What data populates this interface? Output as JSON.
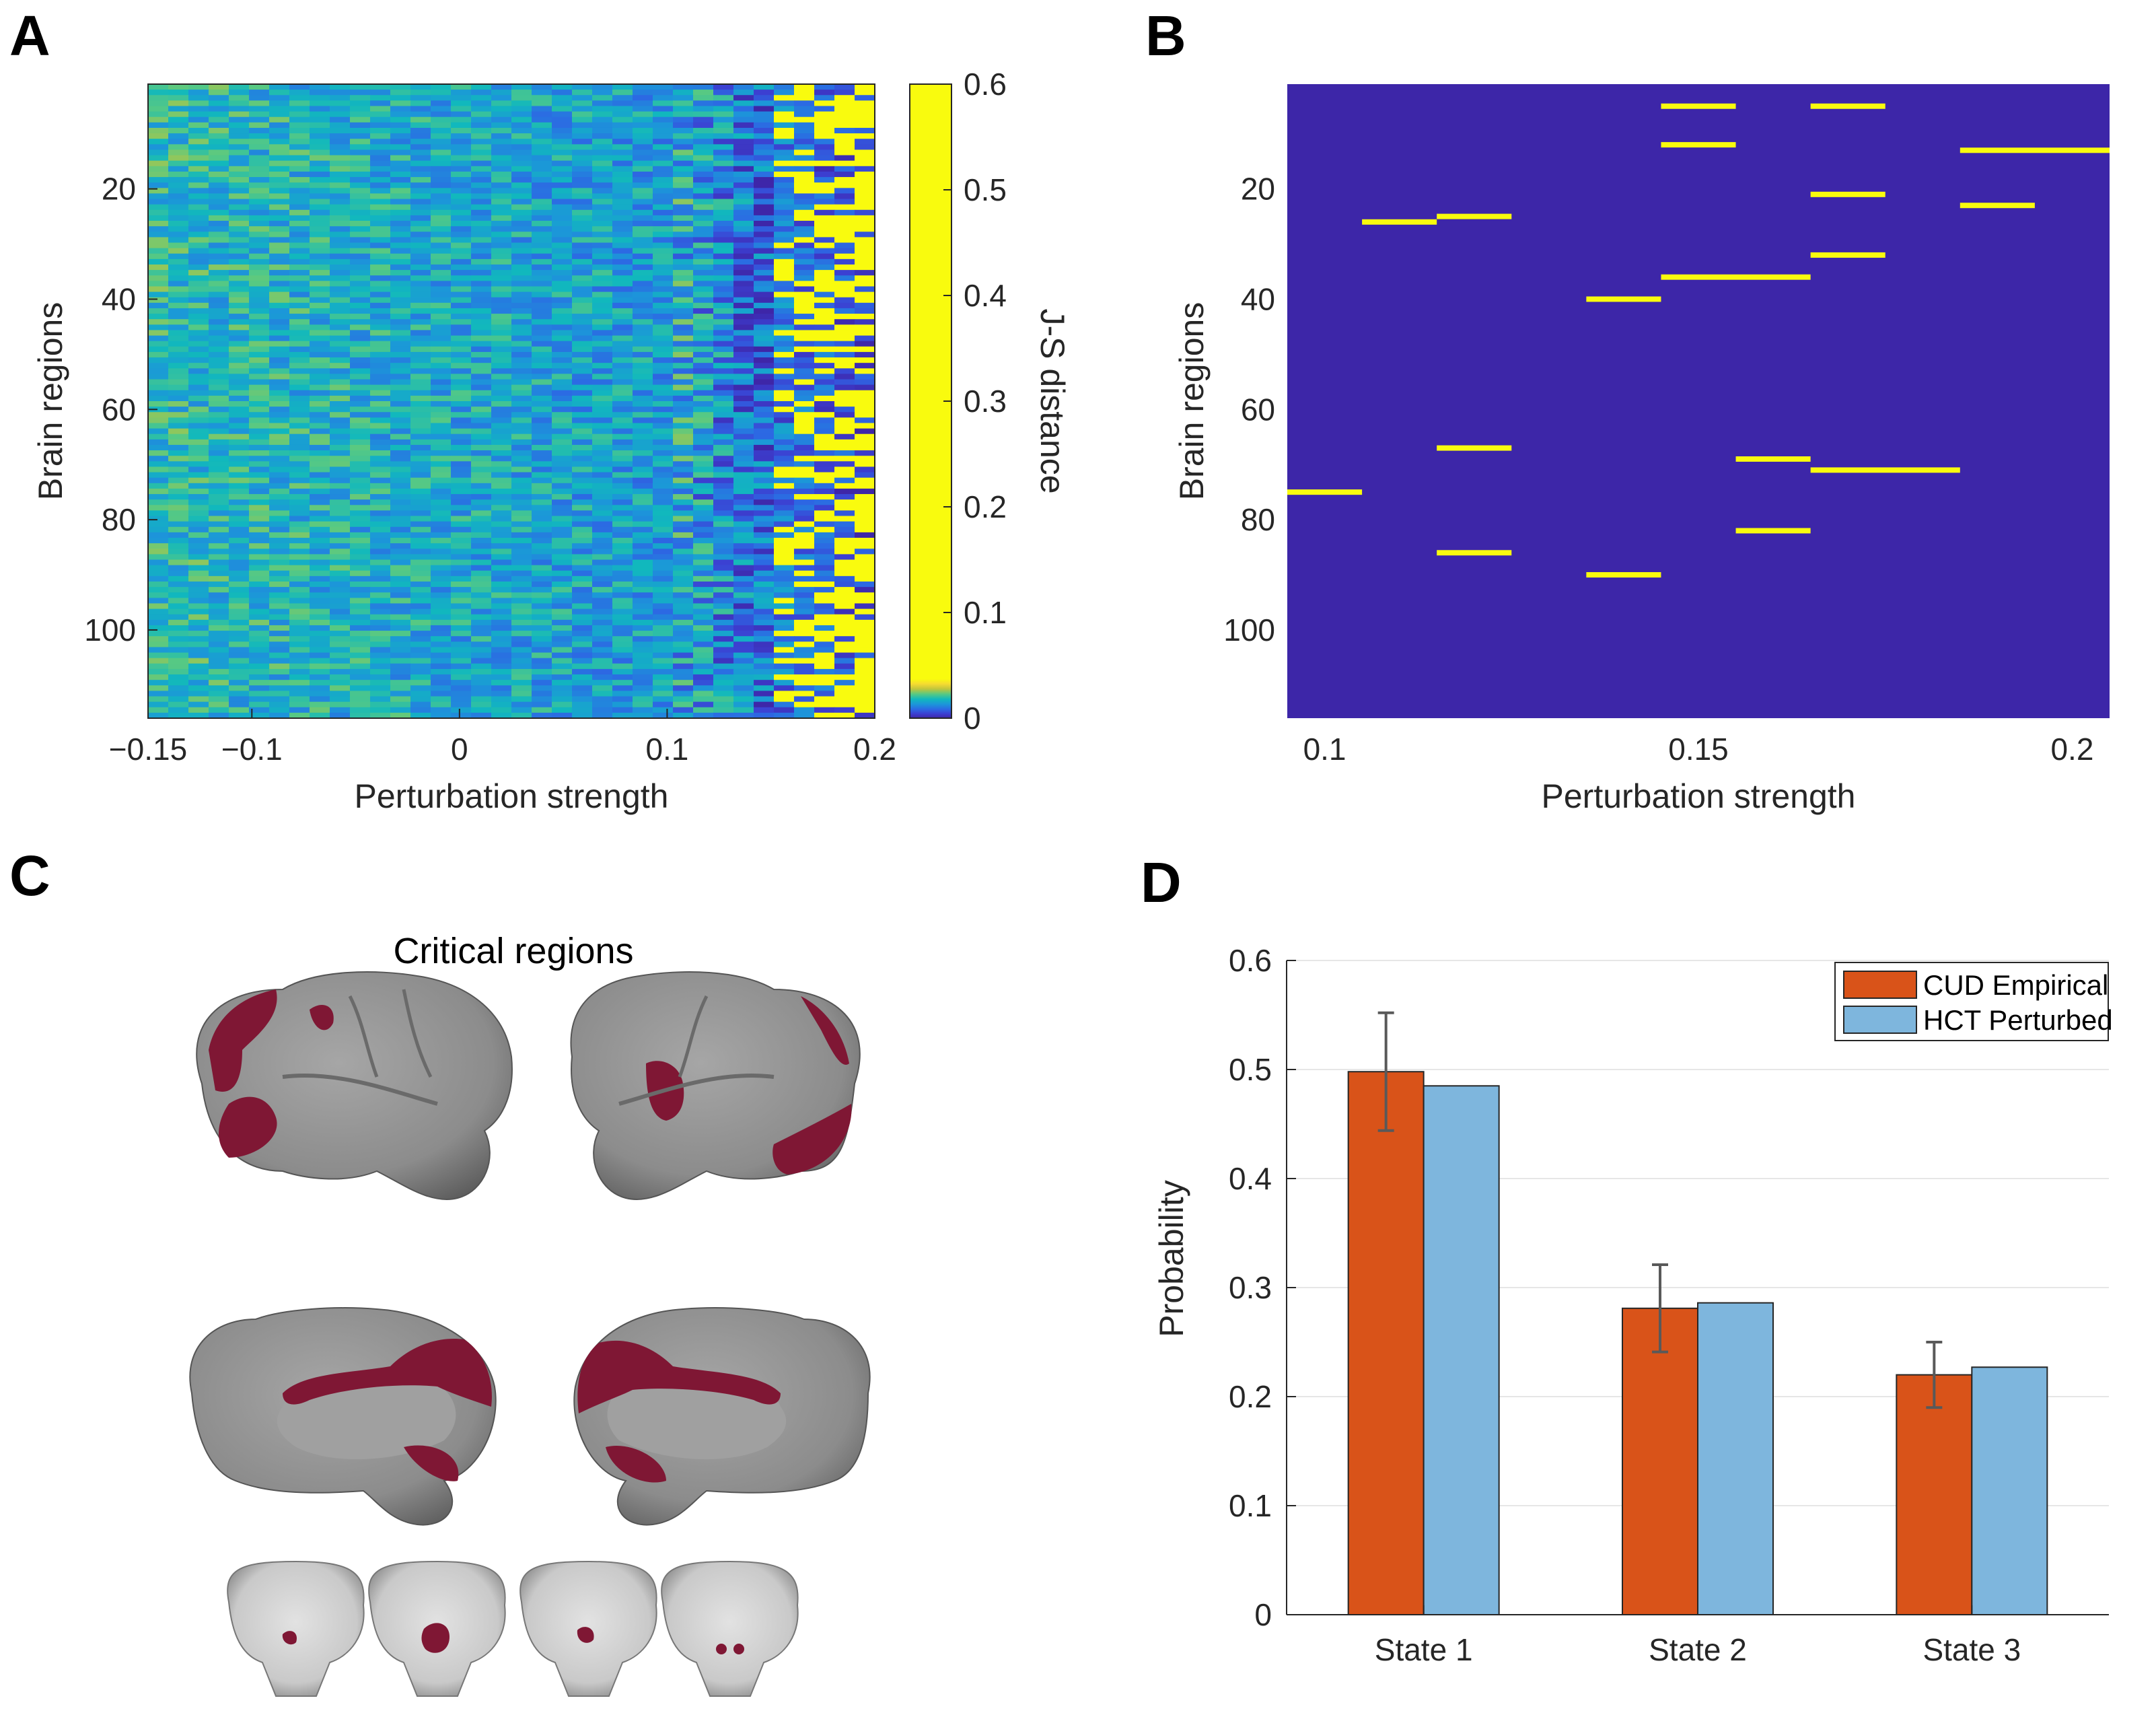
{
  "panels": {
    "A": {
      "label": "A",
      "chart_data": {
        "type": "heatmap",
        "xlabel": "Perturbation strength",
        "ylabel": "Brain regions",
        "xlim": [
          -0.15,
          0.2
        ],
        "ylim": [
          1,
          116
        ],
        "xticks": [
          "−0.15",
          "−0.1",
          "0",
          "0.1",
          "0.2"
        ],
        "xtick_values": [
          -0.15,
          -0.1,
          0,
          0.1,
          0.2
        ],
        "yticks": [
          "20",
          "40",
          "60",
          "80",
          "100"
        ],
        "ytick_values": [
          20,
          40,
          60,
          80,
          100
        ],
        "colorbar": {
          "label": "J-S distance",
          "range": [
            0,
            0.6
          ],
          "ticks": [
            "0",
            "0.1",
            "0.2",
            "0.3",
            "0.4",
            "0.5",
            "0.6"
          ],
          "tick_values": [
            0,
            0.1,
            0.2,
            0.3,
            0.4,
            0.5,
            0.6
          ]
        },
        "n_regions": 116,
        "n_strengths": 36,
        "description_of_trend": "Low J-S distance (~0.02-0.03) for strengths below 0.1; rising sharply near 0.15-0.2 reaching saturation (>=0.6) for many regions"
      }
    },
    "B": {
      "label": "B",
      "chart_data": {
        "type": "heatmap",
        "xlabel": "Perturbation strength",
        "ylabel": "Brain regions",
        "xlim": [
          0.095,
          0.205
        ],
        "ylim": [
          1,
          116
        ],
        "xticks": [
          "0.1",
          "0.15",
          "0.2"
        ],
        "xtick_values": [
          0.1,
          0.15,
          0.2
        ],
        "yticks": [
          "20",
          "40",
          "60",
          "80",
          "100"
        ],
        "ytick_values": [
          20,
          40,
          60,
          80,
          100
        ],
        "critical_segments": [
          {
            "region": 75,
            "x_from": 0.095,
            "x_to": 0.105
          },
          {
            "region": 26,
            "x_from": 0.105,
            "x_to": 0.115
          },
          {
            "region": 25,
            "x_from": 0.115,
            "x_to": 0.125
          },
          {
            "region": 67,
            "x_from": 0.115,
            "x_to": 0.125
          },
          {
            "region": 86,
            "x_from": 0.115,
            "x_to": 0.125
          },
          {
            "region": 40,
            "x_from": 0.135,
            "x_to": 0.145
          },
          {
            "region": 90,
            "x_from": 0.135,
            "x_to": 0.145
          },
          {
            "region": 5,
            "x_from": 0.145,
            "x_to": 0.155
          },
          {
            "region": 12,
            "x_from": 0.145,
            "x_to": 0.155
          },
          {
            "region": 36,
            "x_from": 0.145,
            "x_to": 0.165
          },
          {
            "region": 69,
            "x_from": 0.155,
            "x_to": 0.165
          },
          {
            "region": 82,
            "x_from": 0.155,
            "x_to": 0.165
          },
          {
            "region": 5,
            "x_from": 0.165,
            "x_to": 0.175
          },
          {
            "region": 21,
            "x_from": 0.165,
            "x_to": 0.175
          },
          {
            "region": 32,
            "x_from": 0.165,
            "x_to": 0.175
          },
          {
            "region": 71,
            "x_from": 0.165,
            "x_to": 0.185
          },
          {
            "region": 13,
            "x_from": 0.185,
            "x_to": 0.205
          },
          {
            "region": 23,
            "x_from": 0.185,
            "x_to": 0.195
          }
        ]
      }
    },
    "C": {
      "label": "C",
      "title": "Critical regions",
      "views": [
        "left-lateral",
        "right-lateral",
        "left-medial",
        "right-medial",
        "coronal-1",
        "coronal-2",
        "coronal-3",
        "coronal-4"
      ]
    },
    "D": {
      "label": "D",
      "chart_data": {
        "type": "bar",
        "categories": [
          "State 1",
          "State 2",
          "State 3"
        ],
        "series": [
          {
            "name": "CUD Empirical",
            "values": [
              0.498,
              0.281,
              0.22
            ],
            "error": [
              0.054,
              0.04,
              0.03
            ],
            "color": "#d95319"
          },
          {
            "name": "HCT Perturbed",
            "values": [
              0.485,
              0.286,
              0.227
            ],
            "color": "#7eb6dd"
          }
        ],
        "ylabel": "Probability",
        "ylim": [
          0,
          0.6
        ],
        "yticks": [
          "0",
          "0.1",
          "0.2",
          "0.3",
          "0.4",
          "0.5",
          "0.6"
        ],
        "ytick_values": [
          0,
          0.1,
          0.2,
          0.3,
          0.4,
          0.5,
          0.6
        ],
        "legend_position": "top-right",
        "grid": true
      }
    }
  },
  "colors": {
    "highlight": "#7f1734",
    "brain_gray": "#8f8f8f",
    "parula_dark": "#3d26a8",
    "parula_yellow": "#f9fb0e"
  }
}
